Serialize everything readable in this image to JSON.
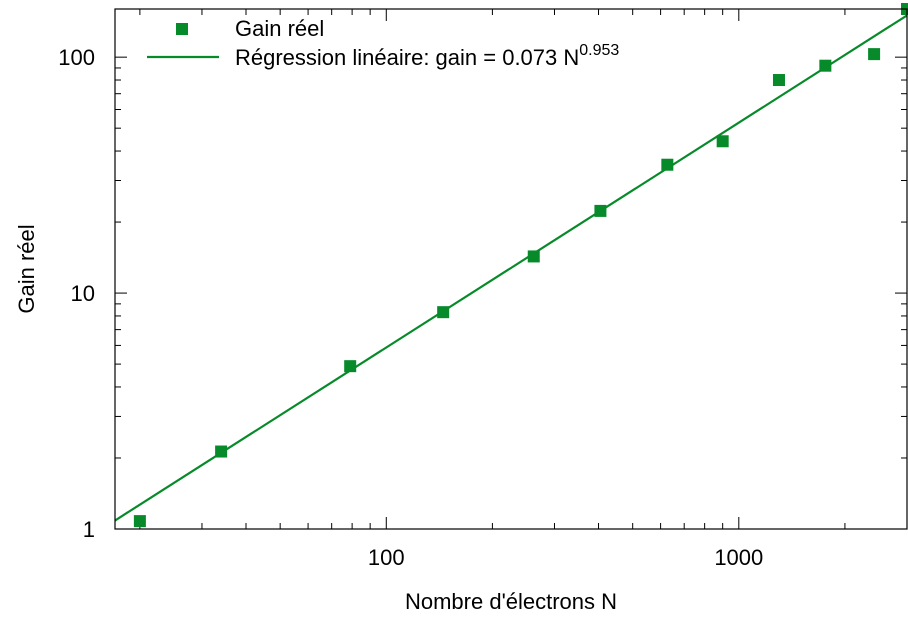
{
  "chart_data": {
    "type": "scatter",
    "xlabel": "Nombre d'électrons N",
    "ylabel": "Gain réel",
    "x_scale": "log",
    "y_scale": "log",
    "xlim": [
      17,
      3000
    ],
    "ylim": [
      1,
      160
    ],
    "x_ticks": [
      {
        "value": 100,
        "label": "100"
      },
      {
        "value": 1000,
        "label": "1000"
      }
    ],
    "y_ticks": [
      {
        "value": 1,
        "label": "1"
      },
      {
        "value": 10,
        "label": "10"
      },
      {
        "value": 100,
        "label": "100"
      }
    ],
    "grid": false,
    "legend_position": "top-left",
    "series": [
      {
        "name": "Gain réel",
        "kind": "points",
        "color": "#078a2a",
        "marker": "square",
        "x": [
          20,
          34,
          79,
          145,
          262,
          405,
          627,
          900,
          1300,
          1760,
          2420,
          3000
        ],
        "y": [
          1.08,
          2.13,
          4.9,
          8.3,
          14.3,
          22.3,
          35.0,
          44.0,
          80.0,
          92.0,
          103.0,
          160.0
        ]
      },
      {
        "name_prefix": "Régression linéaire: gain = 0.073 N",
        "name_exponent": "0.953",
        "kind": "fit",
        "color": "#078a2a",
        "coefficient": 0.073,
        "exponent": 0.953
      }
    ]
  }
}
